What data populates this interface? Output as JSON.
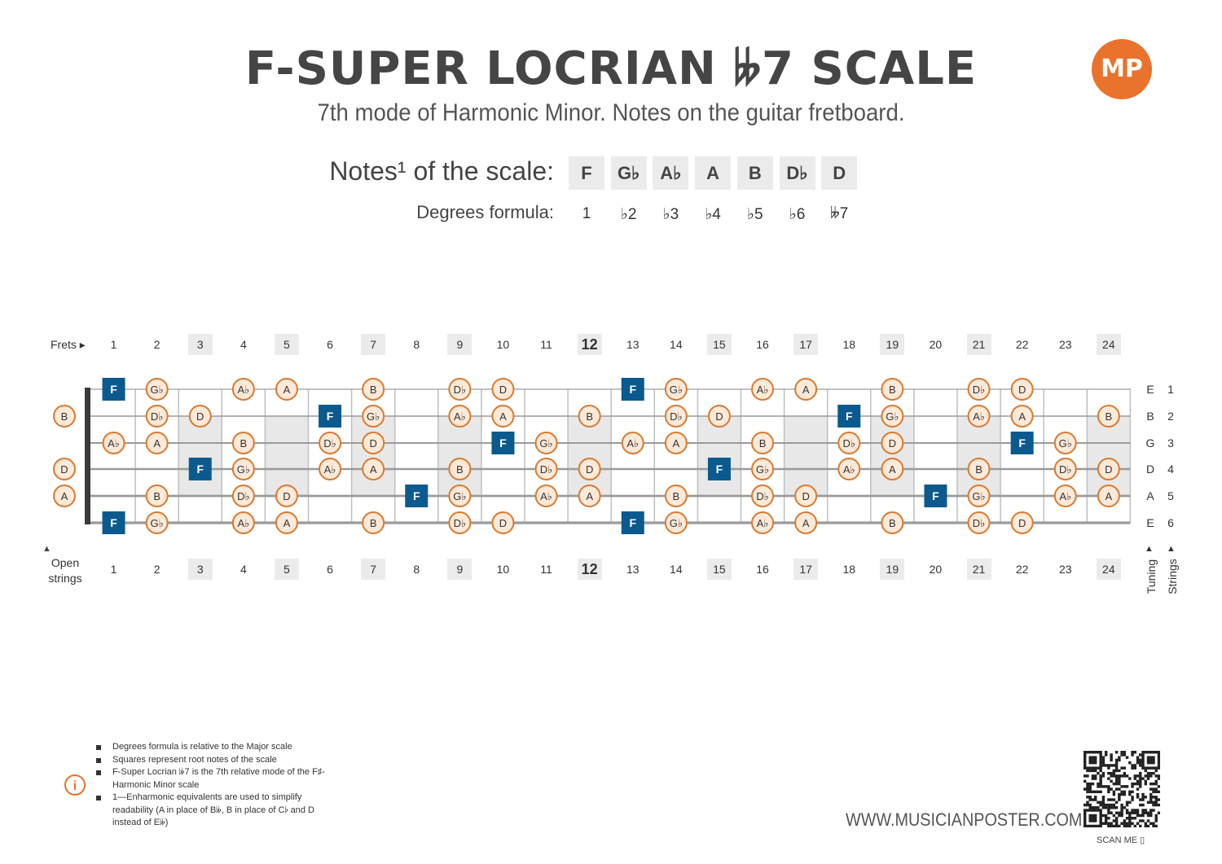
{
  "header": {
    "title": "F-SUPER LOCRIAN 𝄫7 SCALE",
    "subtitle": "7th mode of Harmonic Minor. Notes on the guitar fretboard.",
    "logo_text": "MP"
  },
  "scale": {
    "notes_label": "Notes¹ of the scale:",
    "degrees_label": "Degrees formula:",
    "notes": [
      "F",
      "G♭",
      "A♭",
      "A",
      "B",
      "D♭",
      "D"
    ],
    "degrees": [
      "1",
      "♭2",
      "♭3",
      "♭4",
      "♭5",
      "♭6",
      "𝄫7"
    ]
  },
  "fretboard": {
    "frets_label": "Frets ▸",
    "open_strings_label": "Open strings",
    "tuning_label": "Tuning",
    "strings_label": "Strings",
    "fret_numbers": [
      "1",
      "2",
      "3",
      "4",
      "5",
      "6",
      "7",
      "8",
      "9",
      "10",
      "11",
      "12",
      "13",
      "14",
      "15",
      "16",
      "17",
      "18",
      "19",
      "20",
      "21",
      "22",
      "23",
      "24"
    ],
    "highlighted_frets": [
      3,
      5,
      7,
      9,
      12,
      15,
      17,
      19,
      21,
      24
    ],
    "inlay_frets": [
      3,
      5,
      7,
      9,
      12,
      15,
      17,
      19,
      21,
      24
    ],
    "tuning": [
      "E",
      "B",
      "G",
      "D",
      "A",
      "E"
    ],
    "string_numbers": [
      "1",
      "2",
      "3",
      "4",
      "5",
      "6"
    ],
    "open_notes": [
      "",
      "B",
      "",
      "D",
      "A",
      ""
    ],
    "root_note": "F",
    "strings": [
      [
        "F",
        "G♭",
        "",
        "A♭",
        "A",
        "",
        "B",
        "",
        "D♭",
        "D",
        "",
        "",
        "F",
        "G♭",
        "",
        "A♭",
        "A",
        "",
        "B",
        "",
        "D♭",
        "D",
        "",
        ""
      ],
      [
        "",
        "D♭",
        "D",
        "",
        "",
        "F",
        "G♭",
        "",
        "A♭",
        "A",
        "",
        "B",
        "",
        "D♭",
        "D",
        "",
        "",
        "F",
        "G♭",
        "",
        "A♭",
        "A",
        "",
        "B"
      ],
      [
        "A♭",
        "A",
        "",
        "B",
        "",
        "D♭",
        "D",
        "",
        "",
        "F",
        "G♭",
        "",
        "A♭",
        "A",
        "",
        "B",
        "",
        "D♭",
        "D",
        "",
        "",
        "F",
        "G♭",
        ""
      ],
      [
        "",
        "",
        "F",
        "G♭",
        "",
        "A♭",
        "A",
        "",
        "B",
        "",
        "D♭",
        "D",
        "",
        "",
        "F",
        "G♭",
        "",
        "A♭",
        "A",
        "",
        "B",
        "",
        "D♭",
        "D"
      ],
      [
        "",
        "B",
        "",
        "D♭",
        "D",
        "",
        "",
        "F",
        "G♭",
        "",
        "A♭",
        "A",
        "",
        "B",
        "",
        "D♭",
        "D",
        "",
        "",
        "F",
        "G♭",
        "",
        "A♭",
        "A"
      ],
      [
        "F",
        "G♭",
        "",
        "A♭",
        "A",
        "",
        "B",
        "",
        "D♭",
        "D",
        "",
        "",
        "F",
        "G♭",
        "",
        "A♭",
        "A",
        "",
        "B",
        "",
        "D♭",
        "D",
        "",
        ""
      ]
    ],
    "colors": {
      "root": "#0b5a8e",
      "note_border": "#d97a30",
      "note_fill": "#fde9d8",
      "inlay": "#e8e8e8"
    }
  },
  "footer": {
    "notes": [
      "Degrees formula is relative to the Major scale",
      "Squares represent root notes of the scale",
      "F-Super Locrian 𝄫7 is the 7th relative mode of the F♯-Harmonic Minor scale",
      "1—Enharmonic equivalents are used to simplify readability (A in place of B𝄫, B in place of C♭ and D instead of E𝄫)"
    ],
    "info_icon": "i",
    "website": "WWW.MUSICIANPOSTER.COM",
    "scan_me": "SCAN ME ▯"
  }
}
